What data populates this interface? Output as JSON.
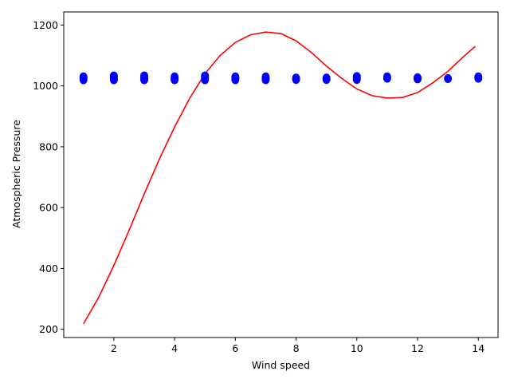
{
  "chart_data": {
    "type": "scatter",
    "title": "",
    "xlabel": "Wind speed",
    "ylabel": "Atmospheric Pressure",
    "xlim": [
      0.35,
      14.65
    ],
    "ylim": [
      173,
      1243
    ],
    "xticks": [
      2,
      4,
      6,
      8,
      10,
      12,
      14
    ],
    "yticks": [
      200,
      400,
      600,
      800,
      1000,
      1200
    ],
    "grid": false,
    "series": [
      {
        "kind": "scatter",
        "color": "#0000ff",
        "points": [
          {
            "x": 1,
            "y": 1020
          },
          {
            "x": 1,
            "y": 1025
          },
          {
            "x": 1,
            "y": 1030
          },
          {
            "x": 2,
            "y": 1020
          },
          {
            "x": 2,
            "y": 1025
          },
          {
            "x": 2,
            "y": 1030
          },
          {
            "x": 2,
            "y": 1033
          },
          {
            "x": 3,
            "y": 1020
          },
          {
            "x": 3,
            "y": 1025
          },
          {
            "x": 3,
            "y": 1030
          },
          {
            "x": 3,
            "y": 1033
          },
          {
            "x": 4,
            "y": 1020
          },
          {
            "x": 4,
            "y": 1025
          },
          {
            "x": 4,
            "y": 1030
          },
          {
            "x": 5,
            "y": 1020
          },
          {
            "x": 5,
            "y": 1025
          },
          {
            "x": 5,
            "y": 1030
          },
          {
            "x": 5,
            "y": 1033
          },
          {
            "x": 6,
            "y": 1020
          },
          {
            "x": 6,
            "y": 1025
          },
          {
            "x": 6,
            "y": 1030
          },
          {
            "x": 7,
            "y": 1020
          },
          {
            "x": 7,
            "y": 1025
          },
          {
            "x": 7,
            "y": 1030
          },
          {
            "x": 8,
            "y": 1021
          },
          {
            "x": 8,
            "y": 1026
          },
          {
            "x": 9,
            "y": 1021
          },
          {
            "x": 9,
            "y": 1026
          },
          {
            "x": 10,
            "y": 1021
          },
          {
            "x": 10,
            "y": 1026
          },
          {
            "x": 10,
            "y": 1031
          },
          {
            "x": 11,
            "y": 1025
          },
          {
            "x": 11,
            "y": 1030
          },
          {
            "x": 12,
            "y": 1023
          },
          {
            "x": 12,
            "y": 1027
          },
          {
            "x": 13,
            "y": 1024
          },
          {
            "x": 14,
            "y": 1025
          },
          {
            "x": 14,
            "y": 1030
          }
        ]
      },
      {
        "kind": "line",
        "color": "#ff0000",
        "points": [
          {
            "x": 1,
            "y": 218
          },
          {
            "x": 1.5,
            "y": 305
          },
          {
            "x": 2,
            "y": 410
          },
          {
            "x": 2.5,
            "y": 525
          },
          {
            "x": 3,
            "y": 645
          },
          {
            "x": 3.5,
            "y": 760
          },
          {
            "x": 4,
            "y": 865
          },
          {
            "x": 4.5,
            "y": 960
          },
          {
            "x": 5,
            "y": 1040
          },
          {
            "x": 5.5,
            "y": 1100
          },
          {
            "x": 6,
            "y": 1143
          },
          {
            "x": 6.5,
            "y": 1168
          },
          {
            "x": 7,
            "y": 1177
          },
          {
            "x": 7.5,
            "y": 1172
          },
          {
            "x": 8,
            "y": 1148
          },
          {
            "x": 8.5,
            "y": 1110
          },
          {
            "x": 9,
            "y": 1065
          },
          {
            "x": 9.5,
            "y": 1025
          },
          {
            "x": 10,
            "y": 990
          },
          {
            "x": 10.5,
            "y": 968
          },
          {
            "x": 11,
            "y": 960
          },
          {
            "x": 11.5,
            "y": 962
          },
          {
            "x": 12,
            "y": 978
          },
          {
            "x": 12.5,
            "y": 1010
          },
          {
            "x": 13,
            "y": 1048
          },
          {
            "x": 13.5,
            "y": 1095
          },
          {
            "x": 13.9,
            "y": 1130
          }
        ]
      }
    ]
  }
}
